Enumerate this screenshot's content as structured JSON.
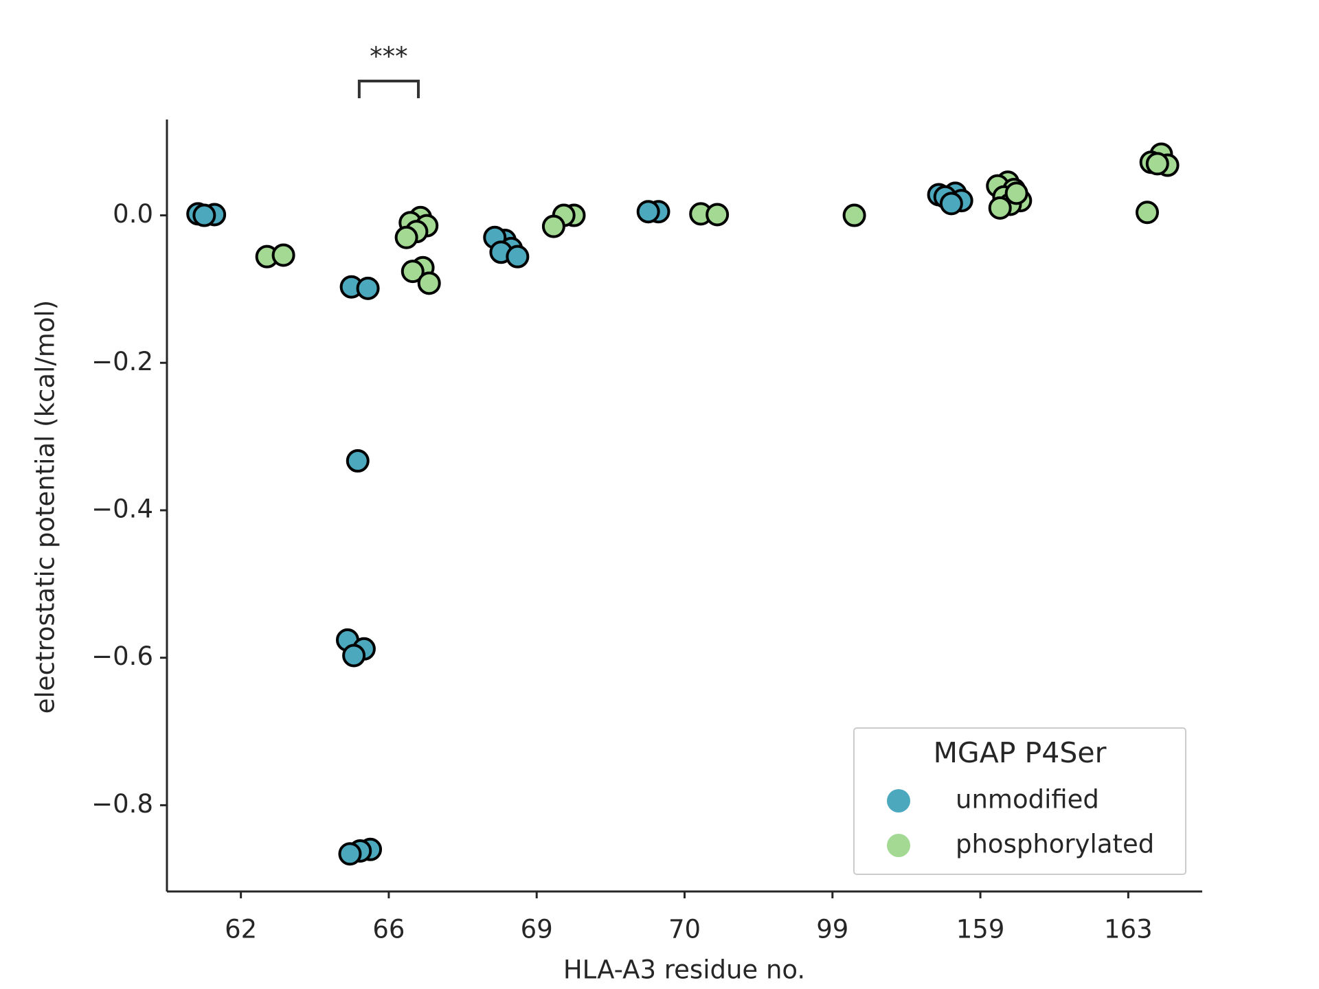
{
  "chart_data": {
    "type": "strip",
    "xlabel": "HLA-A3 residue no.",
    "ylabel": "electrostatic potential (kcal/mol)",
    "categories": [
      "62",
      "66",
      "69",
      "70",
      "99",
      "159",
      "163"
    ],
    "ylim": [
      -0.917,
      0.13
    ],
    "yticks": [
      {
        "value": 0,
        "label": "0.0"
      },
      {
        "value": -0.2,
        "label": "−0.2"
      },
      {
        "value": -0.4,
        "label": "−0.4"
      },
      {
        "value": -0.6,
        "label": "−0.6"
      },
      {
        "value": -0.8,
        "label": "−0.8"
      }
    ],
    "legend_title": "MGAP P4Ser",
    "legend": "lower right",
    "annotations": [
      {
        "text": "***"
      }
    ],
    "series": [
      {
        "name": "unmodified",
        "color": "#4ba8bd",
        "values": [
          [
            0.002,
            0.001,
            0.0
          ],
          [
            -0.097,
            -0.099,
            -0.333,
            -0.576,
            -0.588,
            -0.597,
            -0.86,
            -0.862,
            -0.866
          ],
          [
            -0.034,
            -0.03,
            -0.045,
            -0.05,
            -0.056
          ],
          [
            0.005,
            0.005
          ],
          [],
          [
            0.028,
            0.03,
            0.025,
            0.02,
            0.016
          ],
          []
        ]
      },
      {
        "name": "phosphorylated",
        "color": "#a3d993",
        "values": [
          [
            -0.056,
            -0.054
          ],
          [
            -0.003,
            -0.01,
            -0.014,
            -0.022,
            -0.03,
            -0.071,
            -0.076,
            -0.092
          ],
          [
            0.0,
            0.0,
            -0.015
          ],
          [
            0.002,
            0.001
          ],
          [
            0.0
          ],
          [
            0.045,
            0.04,
            0.035,
            0.025,
            0.02,
            0.015,
            0.01,
            0.03
          ],
          [
            0.083,
            0.072,
            0.068,
            0.07,
            0.004
          ]
        ]
      }
    ]
  }
}
